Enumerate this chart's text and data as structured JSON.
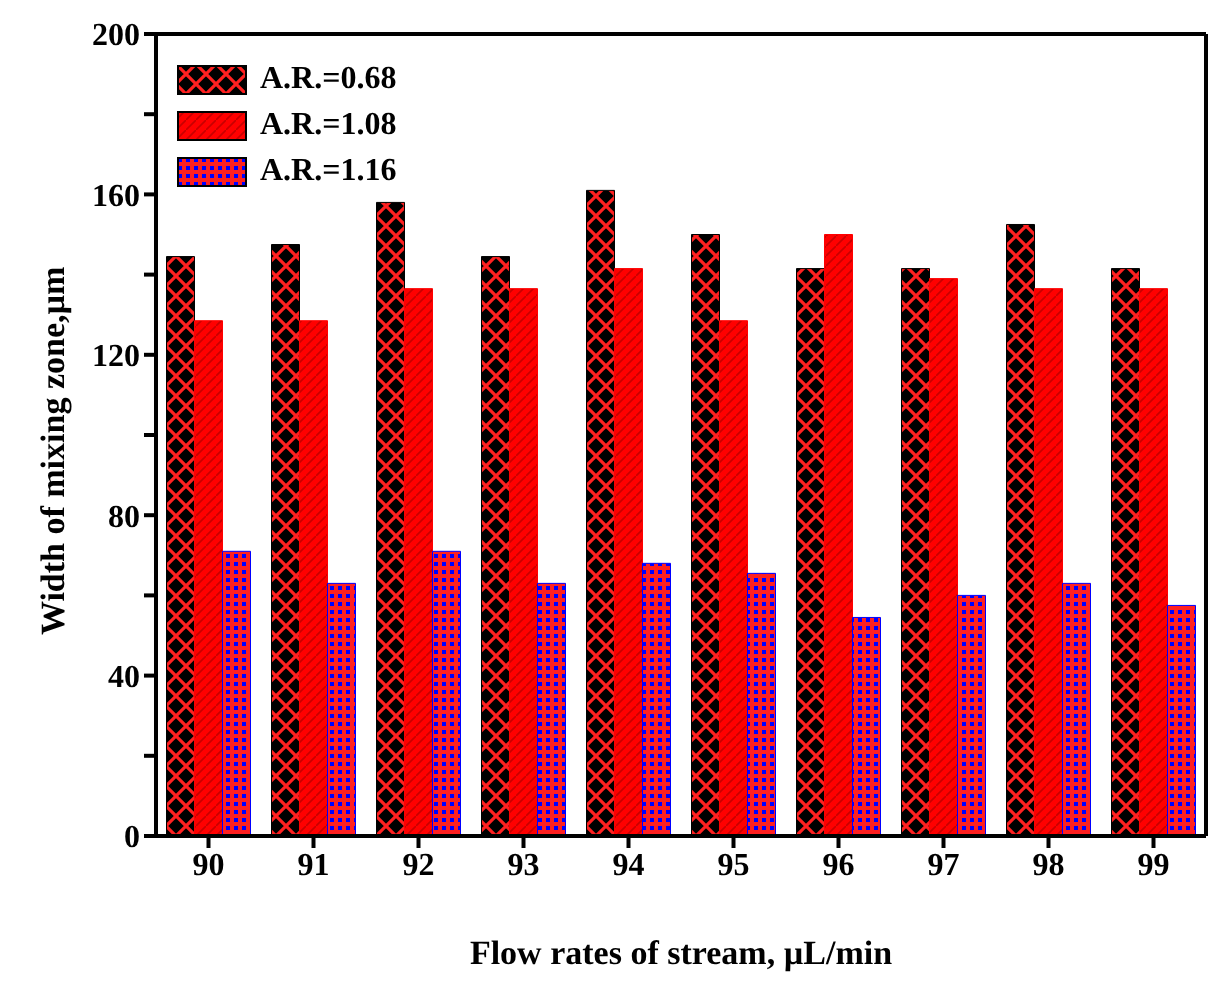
{
  "chart_data": {
    "type": "bar",
    "xlabel": "Flow rates of stream, µL/min",
    "ylabel": "Width of mixing zone,µm",
    "categories": [
      "90",
      "91",
      "92",
      "93",
      "94",
      "95",
      "96",
      "97",
      "98",
      "99"
    ],
    "series": [
      {
        "name": "A.R.=0.68",
        "color": "#000000",
        "values": [
          144.5,
          147.5,
          158,
          144.5,
          161,
          150,
          141.5,
          141.5,
          152.5,
          141.5
        ]
      },
      {
        "name": "A.R.=1.08",
        "color": "#ff0000",
        "values": [
          128.5,
          128.5,
          136.5,
          136.5,
          141.5,
          128.5,
          150,
          139,
          136.5,
          136.5
        ]
      },
      {
        "name": "A.R.=1.16",
        "color": "#0000ff",
        "values": [
          71,
          63,
          71,
          63,
          68,
          65.5,
          54.5,
          60,
          63,
          57.5
        ]
      }
    ],
    "ylim": [
      0,
      200
    ],
    "yticks": [
      0,
      {
        "value": 20,
        "label": null
      },
      40,
      {
        "value": 60,
        "label": null
      },
      80,
      {
        "value": 100,
        "label": null
      },
      120,
      {
        "value": 140,
        "label": null
      },
      160,
      {
        "value": 180,
        "label": null
      },
      200
    ],
    "legend": "top left"
  }
}
